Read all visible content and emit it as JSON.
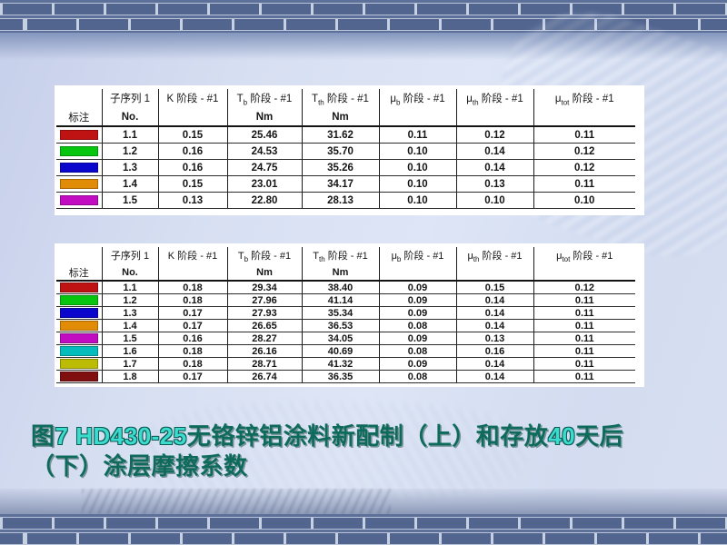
{
  "colors": {
    "caption_cjk": "#0e6b5b",
    "caption_latin": "#3bdccf",
    "table_text": "#151515",
    "border_brick": "#51658f",
    "panel_background": "#ffffff"
  },
  "tables": [
    {
      "name": "fresh-coating-friction-table",
      "legend_label": "标注",
      "columns": [
        {
          "pre": "子序列 1",
          "sub": "",
          "post": "",
          "unit": "No."
        },
        {
          "pre": "K",
          "sub": "",
          "post": " 阶段 - #1",
          "unit": ""
        },
        {
          "pre": "T",
          "sub": "b",
          "post": " 阶段 - #1",
          "unit": "Nm"
        },
        {
          "pre": "T",
          "sub": "th",
          "post": " 阶段 - #1",
          "unit": "Nm"
        },
        {
          "pre": "μ",
          "sub": "b",
          "post": " 阶段 - #1",
          "unit": ""
        },
        {
          "pre": "μ",
          "sub": "th",
          "post": " 阶段 - #1",
          "unit": ""
        },
        {
          "pre": "μ",
          "sub": "tot",
          "post": " 阶段 - #1",
          "unit": ""
        }
      ],
      "rows": [
        {
          "color": "#bf1212",
          "no": "1.1",
          "values": [
            "0.15",
            "25.46",
            "31.62",
            "0.11",
            "0.12",
            "0.11"
          ]
        },
        {
          "color": "#06c50e",
          "no": "1.2",
          "values": [
            "0.16",
            "24.53",
            "35.70",
            "0.10",
            "0.14",
            "0.12"
          ]
        },
        {
          "color": "#0a06cc",
          "no": "1.3",
          "values": [
            "0.16",
            "24.75",
            "35.26",
            "0.10",
            "0.14",
            "0.12"
          ]
        },
        {
          "color": "#e08c06",
          "no": "1.4",
          "values": [
            "0.15",
            "23.01",
            "34.17",
            "0.10",
            "0.13",
            "0.11"
          ]
        },
        {
          "color": "#c20cc2",
          "no": "1.5",
          "values": [
            "0.13",
            "22.80",
            "28.13",
            "0.10",
            "0.10",
            "0.10"
          ]
        }
      ]
    },
    {
      "name": "aged-40days-friction-table",
      "legend_label": "标注",
      "columns": [
        {
          "pre": "子序列 1",
          "sub": "",
          "post": "",
          "unit": "No."
        },
        {
          "pre": "K",
          "sub": "",
          "post": " 阶段 - #1",
          "unit": ""
        },
        {
          "pre": "T",
          "sub": "b",
          "post": " 阶段 - #1",
          "unit": "Nm"
        },
        {
          "pre": "T",
          "sub": "th",
          "post": " 阶段 - #1",
          "unit": "Nm"
        },
        {
          "pre": "μ",
          "sub": "b",
          "post": " 阶段 - #1",
          "unit": ""
        },
        {
          "pre": "μ",
          "sub": "th",
          "post": " 阶段 - #1",
          "unit": ""
        },
        {
          "pre": "μ",
          "sub": "tot",
          "post": " 阶段 - #1",
          "unit": ""
        }
      ],
      "rows": [
        {
          "color": "#bf1212",
          "no": "1.1",
          "values": [
            "0.18",
            "29.34",
            "38.40",
            "0.09",
            "0.15",
            "0.12"
          ]
        },
        {
          "color": "#06c50e",
          "no": "1.2",
          "values": [
            "0.18",
            "27.96",
            "41.14",
            "0.09",
            "0.14",
            "0.11"
          ]
        },
        {
          "color": "#0a06cc",
          "no": "1.3",
          "values": [
            "0.17",
            "27.93",
            "35.34",
            "0.09",
            "0.14",
            "0.11"
          ]
        },
        {
          "color": "#e08c06",
          "no": "1.4",
          "values": [
            "0.17",
            "26.65",
            "36.53",
            "0.08",
            "0.14",
            "0.11"
          ]
        },
        {
          "color": "#c20cc2",
          "no": "1.5",
          "values": [
            "0.16",
            "28.27",
            "34.05",
            "0.09",
            "0.13",
            "0.11"
          ]
        },
        {
          "color": "#04bcbc",
          "no": "1.6",
          "values": [
            "0.18",
            "26.16",
            "40.69",
            "0.08",
            "0.16",
            "0.11"
          ]
        },
        {
          "color": "#bcbc06",
          "no": "1.7",
          "values": [
            "0.18",
            "28.71",
            "41.32",
            "0.09",
            "0.14",
            "0.11"
          ]
        },
        {
          "color": "#801010",
          "no": "1.8",
          "values": [
            "0.17",
            "26.74",
            "36.35",
            "0.08",
            "0.14",
            "0.11"
          ]
        }
      ]
    }
  ],
  "caption": {
    "lines": [
      {
        "segments": [
          {
            "text": "图",
            "lang": "cjk"
          },
          {
            "text": "7",
            "lang": "latin"
          },
          {
            "text": "  ",
            "lang": "cjk"
          },
          {
            "text": "HD430-25",
            "lang": "latin"
          },
          {
            "text": "无铬锌铝涂料新配制（上）和存放",
            "lang": "cjk"
          },
          {
            "text": "40",
            "lang": "latin"
          },
          {
            "text": "天后",
            "lang": "cjk"
          }
        ]
      },
      {
        "segments": [
          {
            "text": "（下）涂层摩擦系数",
            "lang": "cjk"
          }
        ]
      }
    ]
  }
}
